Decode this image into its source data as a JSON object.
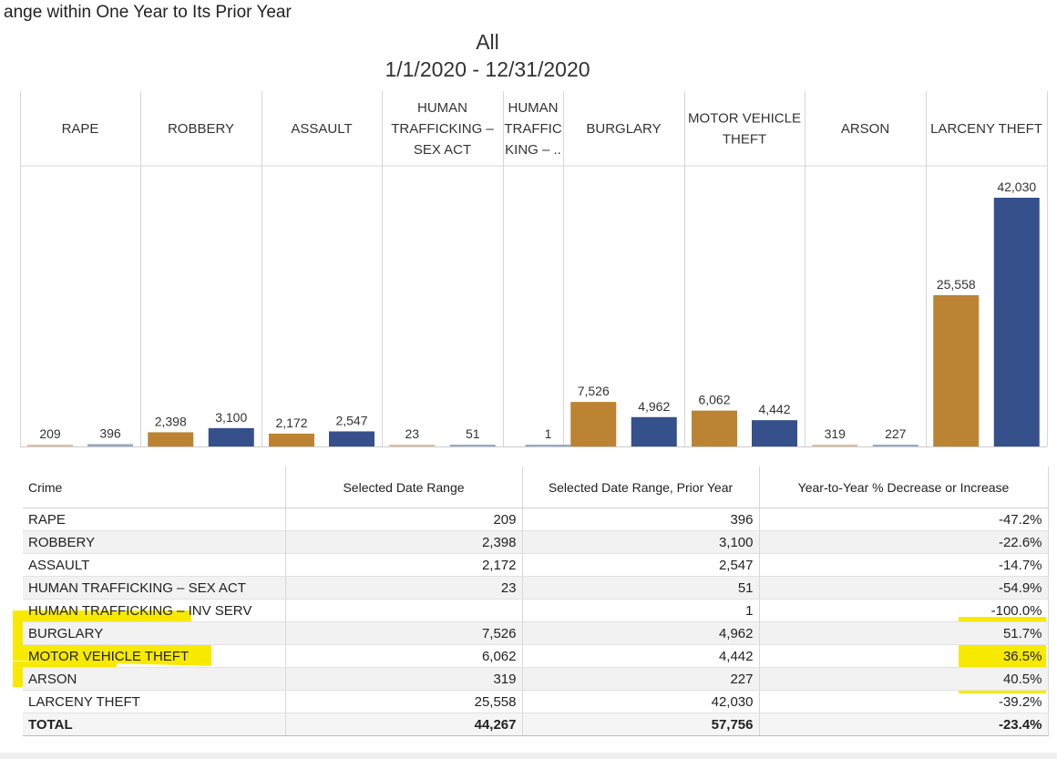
{
  "page": {
    "title": "ange within One Year to Its Prior Year",
    "subtitle_line1": "All",
    "subtitle_line2": "1/1/2020 - 12/31/2020"
  },
  "colors": {
    "current": "#bc8432",
    "prior": "#35508a"
  },
  "chart_data": {
    "type": "bar",
    "categories": [
      [
        "RAPE"
      ],
      [
        "ROBBERY"
      ],
      [
        "ASSAULT"
      ],
      [
        "HUMAN",
        "TRAFFICKING –",
        "SEX ACT"
      ],
      [
        "HUMAN",
        "TRAFFIC",
        "KING – .."
      ],
      [
        "BURGLARY"
      ],
      [
        "MOTOR VEHICLE",
        "THEFT"
      ],
      [
        "ARSON"
      ],
      [
        "LARCENY THEFT"
      ]
    ],
    "series": [
      {
        "name": "Selected Date Range",
        "values": [
          209,
          2398,
          2172,
          23,
          null,
          7526,
          6062,
          319,
          25558
        ],
        "labels": [
          "209",
          "2,398",
          "2,172",
          "23",
          "",
          "7,526",
          "6,062",
          "319",
          "25,558"
        ]
      },
      {
        "name": "Selected Date Range, Prior Year",
        "values": [
          396,
          3100,
          2547,
          51,
          1,
          4962,
          4442,
          227,
          42030
        ],
        "labels": [
          "396",
          "3,100",
          "2,547",
          "51",
          "1",
          "4,962",
          "4,442",
          "227",
          "42,030"
        ]
      }
    ],
    "ylim": [
      0,
      42030
    ]
  },
  "table": {
    "headers": [
      "Crime",
      "Selected Date Range",
      "Selected Date Range, Prior Year",
      "Year-to-Year % Decrease or Increase"
    ],
    "rows": [
      [
        "RAPE",
        "209",
        "396",
        "-47.2%"
      ],
      [
        "ROBBERY",
        "2,398",
        "3,100",
        "-22.6%"
      ],
      [
        "ASSAULT",
        "2,172",
        "2,547",
        "-14.7%"
      ],
      [
        "HUMAN TRAFFICKING – SEX ACT",
        "23",
        "51",
        "-54.9%"
      ],
      [
        "HUMAN TRAFFICKING – INV SERV",
        "",
        "1",
        "-100.0%"
      ],
      [
        "BURGLARY",
        "7,526",
        "4,962",
        "51.7%"
      ],
      [
        "MOTOR VEHICLE THEFT",
        "6,062",
        "4,442",
        "36.5%"
      ],
      [
        "ARSON",
        "319",
        "227",
        "40.5%"
      ],
      [
        "LARCENY THEFT",
        "25,558",
        "42,030",
        "-39.2%"
      ]
    ],
    "total": [
      "TOTAL",
      "44,267",
      "57,756",
      "-23.4%"
    ]
  }
}
